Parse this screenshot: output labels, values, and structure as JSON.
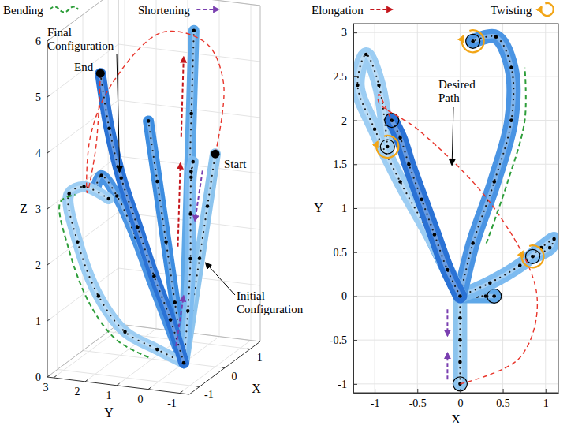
{
  "key": [
    {
      "label": "Bending",
      "color": "#2e9e3a",
      "marker": "wave"
    },
    {
      "label": "Shortening",
      "color": "#7a3fb0",
      "marker": "arrow"
    },
    {
      "label": "Elongation",
      "color": "#c4161c",
      "marker": "arrow"
    },
    {
      "label": "Twisting",
      "color": "#f2a516",
      "marker": "twist"
    }
  ],
  "chart_data": [
    {
      "type": "line3d",
      "x_label": "X",
      "y_label": "Y",
      "z_label": "Z",
      "xlim": [
        -1.4,
        1.4
      ],
      "xticks": [
        -1,
        0,
        1
      ],
      "ylim": [
        -1.3,
        3.2
      ],
      "yticks": [
        -1,
        0,
        1,
        2,
        3
      ],
      "zlim": [
        0,
        6
      ],
      "zticks": [
        0,
        1,
        2,
        3,
        4,
        5,
        6
      ],
      "grid": true,
      "series": [
        {
          "color": "#8cc4ee",
          "x": [
            0,
            0,
            0,
            0,
            0
          ],
          "y": [
            0,
            -0.25,
            -0.5,
            -0.75,
            -1
          ],
          "z": [
            0,
            0.95,
            1.9,
            2.85,
            3.8
          ]
        },
        {
          "color": "#5fa8e8",
          "x": [
            0,
            0.1,
            0.2,
            0.3,
            0.4
          ],
          "y": [
            0,
            0,
            0,
            0,
            0
          ],
          "z": [
            0,
            1.45,
            2.9,
            4.35,
            5.8
          ]
        },
        {
          "color": "#3d8de0",
          "x": [
            0,
            -0.1,
            -0.2,
            -0.3,
            -0.4
          ],
          "y": [
            0,
            0.2,
            0.4,
            0.6,
            0.8
          ],
          "z": [
            0,
            1.1,
            2.2,
            3.3,
            4.4
          ]
        },
        {
          "color": "#7dbbf0",
          "x": [
            0,
            0.35,
            0.7,
            0.95,
            1.1,
            1.05,
            0.85
          ],
          "y": [
            0,
            0.15,
            0.35,
            0.55,
            0.65,
            0.55,
            0.45
          ],
          "z": [
            0,
            0.8,
            1.6,
            2.3,
            2.9,
            3.2,
            3.1
          ]
        },
        {
          "color": "#4a94e3",
          "x": [
            0,
            0.15,
            0.4,
            0.6,
            0.6,
            0.42,
            0.15
          ],
          "y": [
            0,
            0.6,
            1.3,
            2.0,
            2.6,
            2.95,
            2.9
          ],
          "z": [
            0,
            0.6,
            1.2,
            1.9,
            2.6,
            3.0,
            2.9
          ]
        },
        {
          "color": "#9ccdf3",
          "x": [
            0,
            -0.3,
            -0.7,
            -1.0,
            -1.2,
            -1.1,
            -0.95,
            -0.85
          ],
          "y": [
            0,
            0.6,
            1.3,
            1.9,
            2.4,
            2.75,
            2.4,
            1.7
          ],
          "z": [
            0,
            0.3,
            0.7,
            1.4,
            2.4,
            3.2,
            3.3,
            3.1
          ]
        },
        {
          "color": "#2a72d5",
          "x": [
            0,
            -0.15,
            -0.3,
            -0.45,
            -0.6,
            -0.7,
            -0.8
          ],
          "y": [
            0,
            0.3,
            0.7,
            1.1,
            1.5,
            1.8,
            2.0
          ],
          "z": [
            0,
            0.8,
            1.6,
            2.5,
            3.4,
            4.3,
            5.3
          ]
        }
      ],
      "desired_path": {
        "color": "#e8352b",
        "line_style": "dashed",
        "x": [
          0,
          0.7,
          0.9,
          0.4,
          -0.5,
          -0.95,
          -0.95,
          -0.85,
          -0.8
        ],
        "y": [
          -1,
          -0.7,
          0,
          1,
          1.9,
          2.2,
          2.3,
          2.1,
          2
        ],
        "z": [
          3.8,
          4.8,
          5.4,
          5.7,
          5,
          4.2,
          3.2,
          4,
          5.3
        ]
      },
      "points": [
        {
          "label": "Start",
          "x": 0,
          "y": -1,
          "z": 3.8
        },
        {
          "label": "End",
          "x": -0.8,
          "y": 2,
          "z": 5.3
        }
      ],
      "annotations": [
        "Initial Configuration",
        "Final Configuration"
      ]
    },
    {
      "type": "line",
      "x_label": "X",
      "y_label": "Y",
      "xlim": [
        -1.25,
        1.15
      ],
      "xticks": [
        -1,
        -0.5,
        0,
        0.5,
        1
      ],
      "ylim": [
        -1.1,
        3.1
      ],
      "yticks": [
        -1,
        -0.5,
        0,
        0.5,
        1,
        1.5,
        2,
        2.5,
        3
      ],
      "grid": true,
      "series": [
        {
          "color": "#8cc4ee",
          "x": [
            0,
            0,
            0,
            0,
            0
          ],
          "y": [
            0,
            -0.25,
            -0.5,
            -0.75,
            -1
          ]
        },
        {
          "color": "#5fa8e8",
          "x": [
            0,
            0.1,
            0.2,
            0.3,
            0.4
          ],
          "y": [
            0,
            0,
            0,
            0,
            0
          ]
        },
        {
          "color": "#3d8de0",
          "x": [
            0,
            -0.1,
            -0.2,
            -0.3,
            -0.4
          ],
          "y": [
            0,
            0.2,
            0.4,
            0.6,
            0.8
          ]
        },
        {
          "color": "#7dbbf0",
          "x": [
            0,
            0.35,
            0.7,
            0.95,
            1.1,
            1.05,
            0.85
          ],
          "y": [
            0,
            0.15,
            0.35,
            0.55,
            0.65,
            0.55,
            0.45
          ]
        },
        {
          "color": "#4a94e3",
          "x": [
            0,
            0.15,
            0.4,
            0.6,
            0.6,
            0.42,
            0.15
          ],
          "y": [
            0,
            0.6,
            1.3,
            2.0,
            2.6,
            2.95,
            2.9
          ]
        },
        {
          "color": "#9ccdf3",
          "x": [
            0,
            -0.3,
            -0.7,
            -1.0,
            -1.2,
            -1.1,
            -0.95,
            -0.85
          ],
          "y": [
            0,
            0.6,
            1.3,
            1.9,
            2.4,
            2.75,
            2.4,
            1.7
          ]
        },
        {
          "color": "#2a72d5",
          "x": [
            0,
            -0.15,
            -0.3,
            -0.45,
            -0.6,
            -0.7,
            -0.8
          ],
          "y": [
            0,
            0.3,
            0.7,
            1.1,
            1.5,
            1.8,
            2.0
          ]
        }
      ],
      "desired_path": {
        "color": "#e8352b",
        "line_style": "dashed",
        "x": [
          0,
          0.7,
          0.9,
          0.4,
          -0.5,
          -0.95,
          -0.95,
          -0.85,
          -0.8
        ],
        "y": [
          -1,
          -0.7,
          0,
          1,
          1.9,
          2.2,
          2.3,
          2.1,
          2
        ]
      },
      "annotations": [
        "Desired Path"
      ]
    }
  ]
}
